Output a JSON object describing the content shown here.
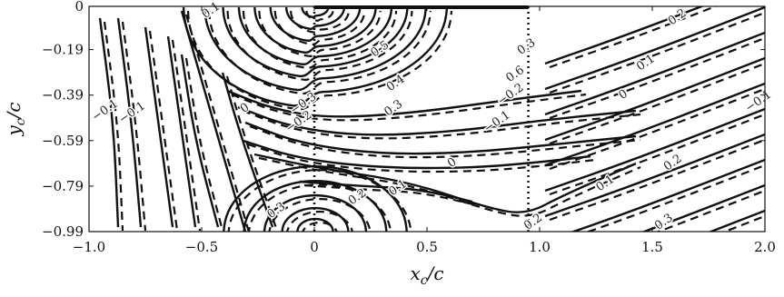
{
  "chart_data": {
    "type": "contour",
    "title": "",
    "xlabel": "x_c/c",
    "ylabel": "y_c/c",
    "xlim": [
      -1.0,
      2.0
    ],
    "ylim": [
      -0.99,
      0
    ],
    "x_ticks": [
      "-1.0",
      "-0.5",
      "0",
      "0.5",
      "1.0",
      "1.5",
      "2.0"
    ],
    "y_ticks": [
      "0",
      "-0.19",
      "-0.39",
      "-0.59",
      "-0.79",
      "-0.99"
    ],
    "vertical_reference_lines_x": [
      0,
      0.95
    ],
    "plate": {
      "x_start": 0,
      "x_end": 0.95,
      "y": 0
    },
    "series": [
      {
        "style": "solid",
        "description": "solid contour lines"
      },
      {
        "style": "dashed",
        "description": "dashed contour lines"
      }
    ],
    "contour_labels": [
      {
        "text": "0.2",
        "x": 1.62,
        "y": -0.06
      },
      {
        "text": "0.1",
        "x": 1.48,
        "y": -0.26
      },
      {
        "text": "0",
        "x": 1.38,
        "y": -0.4
      },
      {
        "text": "-0.1",
        "x": 1.98,
        "y": -0.43
      },
      {
        "text": "0.2",
        "x": 1.6,
        "y": -0.7
      },
      {
        "text": "0.1",
        "x": 1.3,
        "y": -0.79
      },
      {
        "text": "0.2",
        "x": 0.98,
        "y": -0.96
      },
      {
        "text": "0.3",
        "x": 1.56,
        "y": -0.96
      },
      {
        "text": "0.3",
        "x": 0.95,
        "y": -0.19
      },
      {
        "text": "-0.2",
        "x": 0.88,
        "y": -0.4
      },
      {
        "text": "-0.1",
        "x": 0.82,
        "y": -0.52
      },
      {
        "text": "0",
        "x": 0.62,
        "y": -0.7
      },
      {
        "text": "0.1",
        "x": 0.38,
        "y": -0.81
      },
      {
        "text": "0.2",
        "x": 0.2,
        "y": -0.85
      },
      {
        "text": "0.3",
        "x": 0.36,
        "y": -0.46
      },
      {
        "text": "0.4",
        "x": 0.37,
        "y": -0.35
      },
      {
        "text": "0.5",
        "x": 0.3,
        "y": -0.2
      },
      {
        "text": "0.6",
        "x": 0.9,
        "y": -0.31
      },
      {
        "text": "-0.3",
        "x": -0.04,
        "y": -0.44
      },
      {
        "text": "-0.2",
        "x": -0.06,
        "y": -0.52
      },
      {
        "text": "0",
        "x": -0.3,
        "y": -0.46
      },
      {
        "text": "0.3",
        "x": -0.16,
        "y": -0.91
      },
      {
        "text": "-0.1",
        "x": -0.8,
        "y": -0.48
      },
      {
        "text": "-0.1",
        "x": -0.92,
        "y": -0.47
      },
      {
        "text": "0.1",
        "x": -0.45,
        "y": -0.03
      }
    ]
  }
}
